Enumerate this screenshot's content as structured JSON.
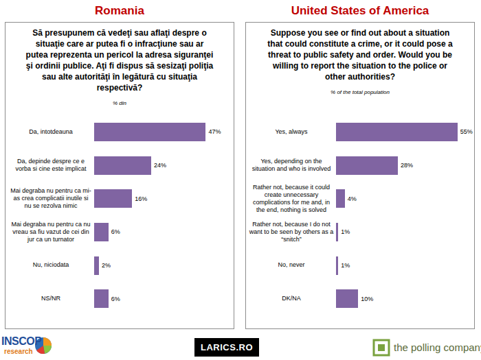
{
  "chart_data": [
    {
      "type": "bar",
      "orientation": "horizontal",
      "title": "Romania",
      "subtitle": "Să presupunem că vedeţi sau aflaţi despre o situaţie care ar putea fi o infracţiune sau ar putea reprezenta un pericol la adresa siguranţei şi ordinii publice. Aţi fi dispus să sesizaţi poliţia sau alte autorităţi în legătură cu situaţia respectivă?",
      "xlabel": "% din",
      "categories": [
        "Da, intotdeauna",
        "Da, depinde despre ce e vorba si cine este implicat",
        "Mai degraba nu pentru ca mi-as crea complicatii inutile si nu se rezolva nimic",
        "Mai degraba nu pentru ca nu vreau sa fiu vazut de cei din jur ca un turnator",
        "Nu, niciodata",
        "NS/NR"
      ],
      "values": [
        47,
        24,
        16,
        6,
        2,
        6
      ],
      "value_labels": [
        "47%",
        "24%",
        "16%",
        "6%",
        "2%",
        "6%"
      ],
      "color": "#8064a2",
      "xlim": [
        0,
        57
      ],
      "data_labels": true,
      "tick_labels": "y",
      "grid": false
    },
    {
      "type": "bar",
      "orientation": "horizontal",
      "title": "United States of America",
      "subtitle": "Suppose you see or find out about a situation that could constitute a crime, or it could pose a threat to public safety and order. Would you be willing to report the situation to the police or other authorities?",
      "xlabel": "% of the total population",
      "categories": [
        "Yes, always",
        "Yes, depending on the situation and who is involved",
        "Rather not, because it could create unnecessary complications for me and, in the end, nothing is solved",
        "Rather not, because I do not want to be seen by others as a “snitch”",
        "No, never",
        "DK/NA"
      ],
      "values": [
        55,
        28,
        4,
        1,
        1,
        10
      ],
      "value_labels": [
        "55%",
        "28%",
        "4%",
        "1%",
        "1%",
        "10%"
      ],
      "color": "#8064a2",
      "xlim": [
        0,
        61
      ],
      "data_labels": true,
      "tick_labels": "y",
      "grid": false
    }
  ],
  "logos": {
    "inscop": "INSCOP",
    "inscop_sub": "research",
    "larics": "LARICS.RO",
    "polling": "the polling company"
  }
}
